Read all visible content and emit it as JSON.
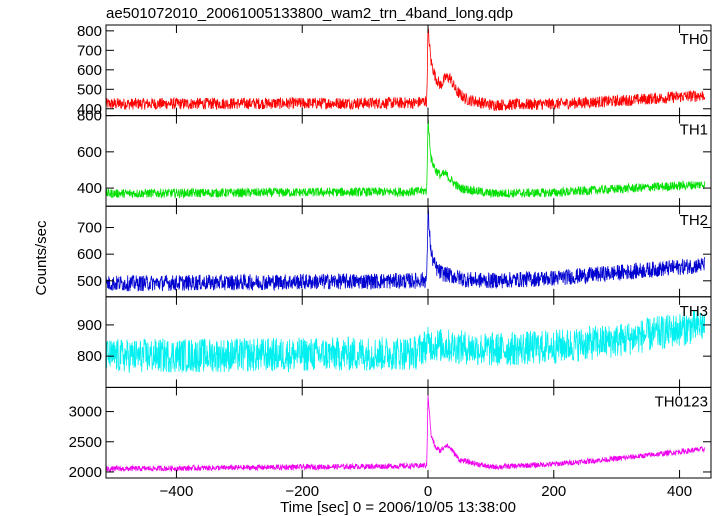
{
  "chart_data": {
    "type": "line",
    "title": "ae501072010_20061005133800_wam2_trn_4band_long.qdp",
    "xlabel": "Time [sec] 0 = 2006/10/05 13:38:00",
    "ylabel": "Counts/sec",
    "xlim": [
      -512,
      450
    ],
    "x_ticks": [
      -400,
      -200,
      0,
      200,
      400
    ],
    "x_tick_labels": [
      "−400",
      "−200",
      "0",
      "200",
      "400"
    ],
    "grid": false,
    "panels": [
      {
        "name": "TH0",
        "color": "#ff0000",
        "ylim": [
          365,
          830
        ],
        "y_ticks": [
          400,
          500,
          600,
          700,
          800
        ],
        "y_tick_labels": [
          "400",
          "500",
          "600",
          "700",
          "800"
        ],
        "profile": [
          [
            -512,
            425
          ],
          [
            -20,
            430
          ],
          [
            -2,
            440
          ],
          [
            0,
            810
          ],
          [
            5,
            640
          ],
          [
            12,
            560
          ],
          [
            20,
            520
          ],
          [
            28,
            560
          ],
          [
            35,
            560
          ],
          [
            45,
            490
          ],
          [
            60,
            450
          ],
          [
            100,
            420
          ],
          [
            200,
            425
          ],
          [
            300,
            440
          ],
          [
            440,
            470
          ]
        ],
        "noise": 30
      },
      {
        "name": "TH1",
        "color": "#00e000",
        "ylim": [
          300,
          800
        ],
        "y_ticks": [
          400,
          600,
          800
        ],
        "y_tick_labels": [
          "400",
          "600",
          "800"
        ],
        "profile": [
          [
            -512,
            370
          ],
          [
            -20,
            380
          ],
          [
            -2,
            385
          ],
          [
            0,
            780
          ],
          [
            5,
            560
          ],
          [
            12,
            500
          ],
          [
            20,
            470
          ],
          [
            28,
            480
          ],
          [
            35,
            450
          ],
          [
            50,
            400
          ],
          [
            100,
            370
          ],
          [
            200,
            375
          ],
          [
            300,
            395
          ],
          [
            440,
            420
          ]
        ],
        "noise": 25
      },
      {
        "name": "TH2",
        "color": "#0000d0",
        "ylim": [
          440,
          780
        ],
        "y_ticks": [
          500,
          600,
          700
        ],
        "y_tick_labels": [
          "500",
          "600",
          "700"
        ],
        "profile": [
          [
            -512,
            490
          ],
          [
            -20,
            500
          ],
          [
            -2,
            505
          ],
          [
            0,
            765
          ],
          [
            5,
            600
          ],
          [
            12,
            550
          ],
          [
            20,
            530
          ],
          [
            35,
            520
          ],
          [
            60,
            505
          ],
          [
            100,
            500
          ],
          [
            200,
            510
          ],
          [
            300,
            530
          ],
          [
            440,
            560
          ]
        ],
        "noise": 30
      },
      {
        "name": "TH3",
        "color": "#00f0f0",
        "ylim": [
          700,
          990
        ],
        "y_ticks": [
          800,
          900
        ],
        "y_tick_labels": [
          "800",
          "900"
        ],
        "profile": [
          [
            -512,
            800
          ],
          [
            -200,
            805
          ],
          [
            -20,
            810
          ],
          [
            0,
            840
          ],
          [
            20,
            835
          ],
          [
            100,
            820
          ],
          [
            200,
            830
          ],
          [
            300,
            850
          ],
          [
            440,
            900
          ]
        ],
        "noise": 55
      },
      {
        "name": "TH0123",
        "color": "#ee00ee",
        "ylim": [
          1900,
          3400
        ],
        "y_ticks": [
          2000,
          2500,
          3000
        ],
        "y_tick_labels": [
          "2000",
          "2500",
          "3000"
        ],
        "profile": [
          [
            -512,
            2050
          ],
          [
            -20,
            2100
          ],
          [
            -2,
            2110
          ],
          [
            0,
            3300
          ],
          [
            5,
            2600
          ],
          [
            12,
            2400
          ],
          [
            20,
            2350
          ],
          [
            28,
            2450
          ],
          [
            35,
            2400
          ],
          [
            50,
            2200
          ],
          [
            100,
            2080
          ],
          [
            200,
            2130
          ],
          [
            300,
            2220
          ],
          [
            440,
            2380
          ]
        ],
        "noise": 45
      }
    ]
  }
}
